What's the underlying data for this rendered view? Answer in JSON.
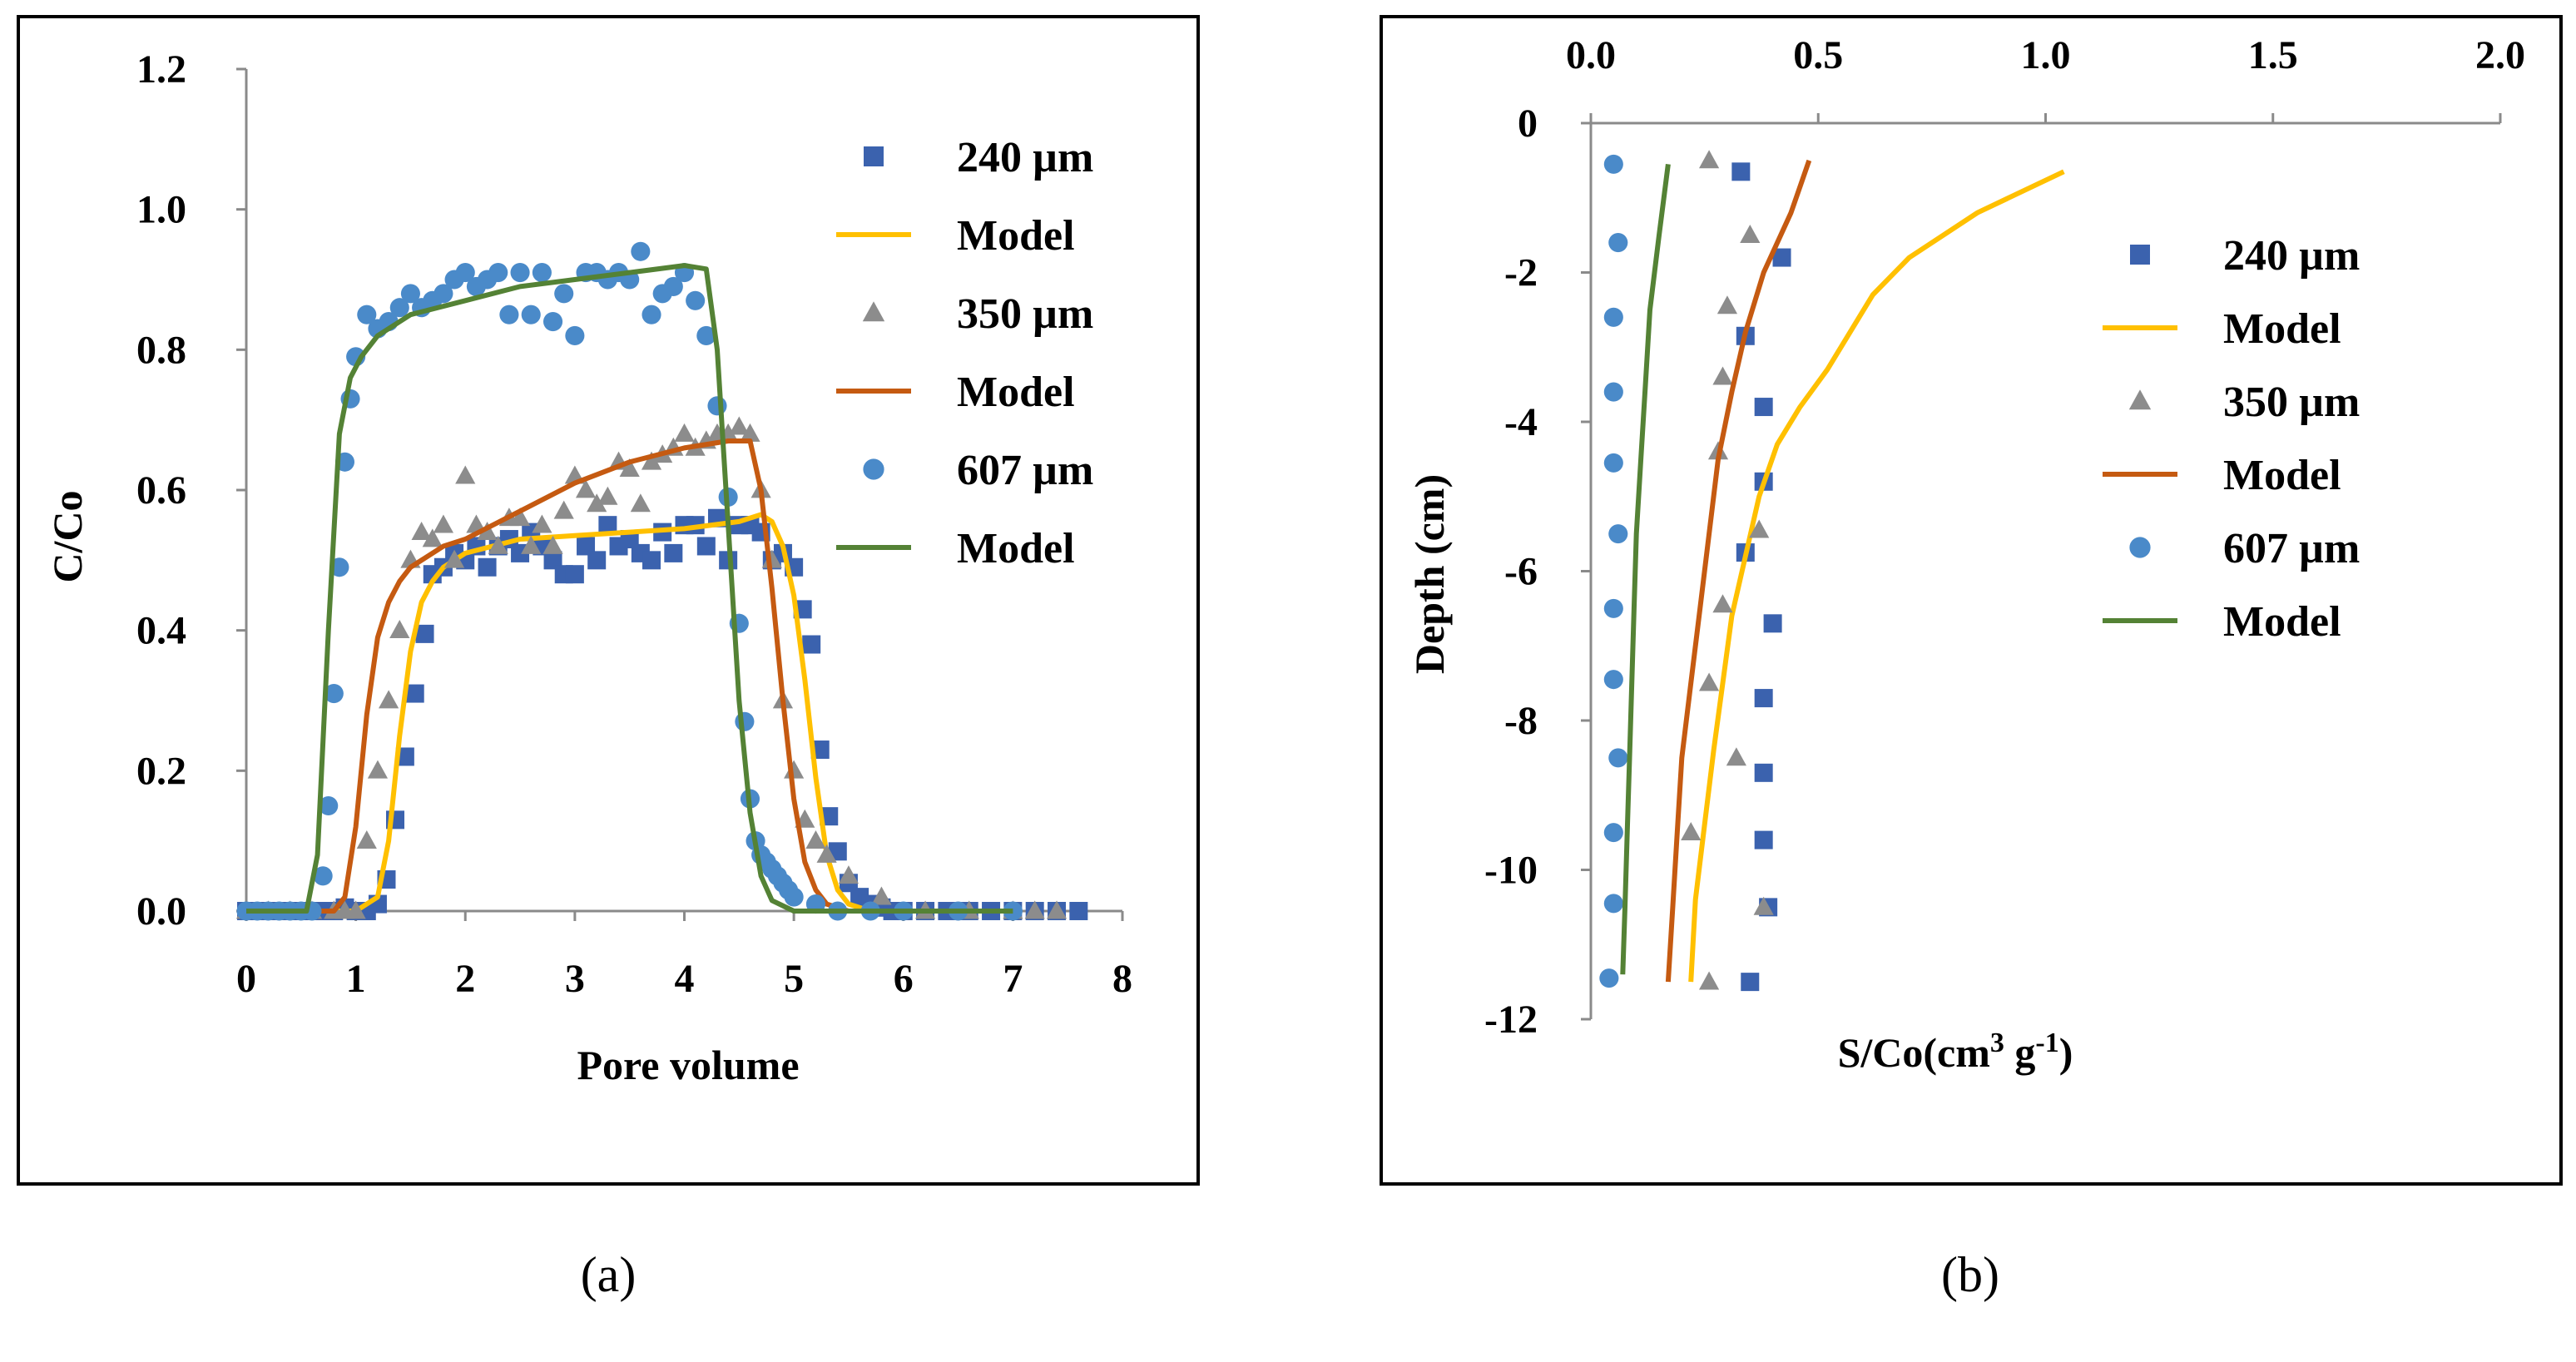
{
  "chart_data": [
    {
      "type": "scatter",
      "caption": "(a)",
      "xlabel": "Pore volume",
      "ylabel": "C/Co",
      "xlim": [
        0,
        8
      ],
      "ylim": [
        0,
        1.2
      ],
      "xticks": [
        "0",
        "1",
        "2",
        "3",
        "4",
        "5",
        "6",
        "7",
        "8"
      ],
      "yticks": [
        "0.0",
        "0.2",
        "0.4",
        "0.6",
        "0.8",
        "1.0",
        "1.2"
      ],
      "legend_position": "top-right",
      "series": [
        {
          "name": "240 µm",
          "kind": "scatter",
          "marker": "square",
          "color": "#3B62AE",
          "x": [
            0,
            0.1,
            0.2,
            0.3,
            0.4,
            0.5,
            0.6,
            0.7,
            0.8,
            0.9,
            1.0,
            1.1,
            1.2,
            1.28,
            1.36,
            1.45,
            1.54,
            1.63,
            1.7,
            1.8,
            1.9,
            2.0,
            2.1,
            2.2,
            2.3,
            2.4,
            2.5,
            2.6,
            2.7,
            2.8,
            2.9,
            3.0,
            3.1,
            3.2,
            3.3,
            3.4,
            3.5,
            3.6,
            3.7,
            3.8,
            3.9,
            4.0,
            4.1,
            4.2,
            4.3,
            4.4,
            4.5,
            4.6,
            4.7,
            4.8,
            4.9,
            5.0,
            5.08,
            5.16,
            5.24,
            5.32,
            5.4,
            5.5,
            5.6,
            5.7,
            5.8,
            5.9,
            6.0,
            6.2,
            6.4,
            6.6,
            6.8,
            7.0,
            7.2,
            7.4,
            7.6
          ],
          "y": [
            0,
            0,
            0,
            0,
            0,
            0,
            0,
            0,
            0,
            0.005,
            0,
            0,
            0.01,
            0.045,
            0.13,
            0.22,
            0.31,
            0.395,
            0.48,
            0.49,
            0.51,
            0.5,
            0.52,
            0.49,
            0.52,
            0.53,
            0.51,
            0.54,
            0.52,
            0.5,
            0.48,
            0.48,
            0.52,
            0.5,
            0.55,
            0.52,
            0.53,
            0.51,
            0.5,
            0.54,
            0.51,
            0.55,
            0.55,
            0.52,
            0.56,
            0.5,
            0.55,
            0.55,
            0.54,
            0.5,
            0.51,
            0.49,
            0.43,
            0.38,
            0.23,
            0.135,
            0.085,
            0.04,
            0.02,
            0.01,
            0.005,
            0,
            0,
            0,
            0,
            0,
            0,
            0,
            0,
            0,
            0
          ]
        },
        {
          "name": "Model",
          "kind": "line",
          "color": "#FFC000",
          "x": [
            0,
            1.0,
            1.2,
            1.3,
            1.4,
            1.5,
            1.6,
            1.7,
            1.8,
            2.0,
            2.5,
            3.0,
            3.5,
            4.0,
            4.5,
            4.7,
            4.8,
            4.9,
            5.0,
            5.1,
            5.2,
            5.3,
            5.4,
            5.5,
            5.7,
            6.0,
            7.0
          ],
          "y": [
            0,
            0,
            0.02,
            0.1,
            0.25,
            0.37,
            0.44,
            0.47,
            0.49,
            0.51,
            0.53,
            0.535,
            0.54,
            0.545,
            0.555,
            0.565,
            0.555,
            0.52,
            0.45,
            0.33,
            0.19,
            0.08,
            0.03,
            0.01,
            0,
            0,
            0
          ]
        },
        {
          "name": "350 µm",
          "kind": "scatter",
          "marker": "triangle",
          "color": "#8C8C8C",
          "x": [
            0,
            0.2,
            0.4,
            0.6,
            0.8,
            0.9,
            1.0,
            1.1,
            1.2,
            1.3,
            1.4,
            1.5,
            1.6,
            1.7,
            1.8,
            1.9,
            2.0,
            2.1,
            2.2,
            2.3,
            2.4,
            2.5,
            2.6,
            2.7,
            2.8,
            2.9,
            3.0,
            3.1,
            3.2,
            3.3,
            3.4,
            3.5,
            3.6,
            3.7,
            3.8,
            3.9,
            4.0,
            4.1,
            4.2,
            4.3,
            4.4,
            4.5,
            4.6,
            4.7,
            4.8,
            4.9,
            5.0,
            5.1,
            5.2,
            5.3,
            5.5,
            5.8,
            6.2,
            6.6,
            7.0,
            7.2,
            7.4
          ],
          "y": [
            0,
            0,
            0,
            0,
            0,
            0,
            0,
            0.1,
            0.2,
            0.3,
            0.4,
            0.5,
            0.54,
            0.53,
            0.55,
            0.5,
            0.62,
            0.55,
            0.54,
            0.52,
            0.56,
            0.56,
            0.52,
            0.55,
            0.52,
            0.57,
            0.62,
            0.6,
            0.58,
            0.59,
            0.64,
            0.63,
            0.58,
            0.64,
            0.65,
            0.66,
            0.68,
            0.66,
            0.67,
            0.68,
            0.68,
            0.69,
            0.68,
            0.6,
            0.5,
            0.3,
            0.2,
            0.13,
            0.1,
            0.08,
            0.05,
            0.02,
            0,
            0,
            0,
            0,
            0
          ]
        },
        {
          "name": "Model",
          "kind": "line",
          "color": "#C55A11",
          "x": [
            0,
            0.8,
            0.9,
            1.0,
            1.1,
            1.2,
            1.3,
            1.4,
            1.5,
            1.6,
            1.8,
            2.0,
            2.5,
            3.0,
            3.5,
            4.0,
            4.4,
            4.6,
            4.7,
            4.8,
            4.9,
            5.0,
            5.1,
            5.2,
            5.3,
            5.5,
            6.0,
            7.0
          ],
          "y": [
            0,
            0,
            0.02,
            0.12,
            0.28,
            0.39,
            0.44,
            0.47,
            0.49,
            0.5,
            0.52,
            0.53,
            0.57,
            0.61,
            0.64,
            0.66,
            0.67,
            0.67,
            0.6,
            0.46,
            0.3,
            0.16,
            0.07,
            0.03,
            0.01,
            0,
            0,
            0
          ]
        },
        {
          "name": "607 µm",
          "kind": "scatter",
          "marker": "circle",
          "color": "#4A8AC9",
          "x": [
            0,
            0.1,
            0.2,
            0.3,
            0.4,
            0.5,
            0.6,
            0.7,
            0.75,
            0.8,
            0.85,
            0.9,
            0.95,
            1.0,
            1.1,
            1.2,
            1.3,
            1.4,
            1.5,
            1.6,
            1.7,
            1.8,
            1.9,
            2.0,
            2.1,
            2.2,
            2.3,
            2.4,
            2.5,
            2.6,
            2.7,
            2.8,
            2.9,
            3.0,
            3.1,
            3.2,
            3.3,
            3.4,
            3.5,
            3.6,
            3.7,
            3.8,
            3.9,
            4.0,
            4.1,
            4.2,
            4.3,
            4.4,
            4.5,
            4.55,
            4.6,
            4.65,
            4.7,
            4.75,
            4.8,
            4.85,
            4.9,
            4.95,
            5.0,
            5.2,
            5.4,
            5.7,
            6.0,
            6.5,
            7.0
          ],
          "y": [
            0,
            0,
            0,
            0,
            0,
            0,
            0,
            0.05,
            0.15,
            0.31,
            0.49,
            0.64,
            0.73,
            0.79,
            0.85,
            0.83,
            0.84,
            0.86,
            0.88,
            0.86,
            0.87,
            0.88,
            0.9,
            0.91,
            0.89,
            0.9,
            0.91,
            0.85,
            0.91,
            0.85,
            0.91,
            0.84,
            0.88,
            0.82,
            0.91,
            0.91,
            0.9,
            0.91,
            0.9,
            0.94,
            0.85,
            0.88,
            0.89,
            0.91,
            0.87,
            0.82,
            0.72,
            0.59,
            0.41,
            0.27,
            0.16,
            0.1,
            0.08,
            0.07,
            0.06,
            0.05,
            0.04,
            0.03,
            0.02,
            0.01,
            0,
            0,
            0,
            0,
            0
          ]
        },
        {
          "name": "Model",
          "kind": "line",
          "color": "#548235",
          "x": [
            0,
            0.55,
            0.65,
            0.75,
            0.85,
            0.95,
            1.05,
            1.2,
            1.5,
            2.0,
            2.5,
            3.0,
            3.5,
            4.0,
            4.2,
            4.3,
            4.4,
            4.5,
            4.6,
            4.7,
            4.8,
            5.0,
            5.5,
            7.0
          ],
          "y": [
            0,
            0,
            0.08,
            0.4,
            0.68,
            0.76,
            0.79,
            0.82,
            0.85,
            0.87,
            0.89,
            0.9,
            0.91,
            0.92,
            0.915,
            0.8,
            0.55,
            0.3,
            0.14,
            0.05,
            0.015,
            0,
            0,
            0
          ]
        }
      ]
    },
    {
      "type": "scatter",
      "caption": "(b)",
      "xlabel": "S/Co(cm³ g⁻¹)",
      "xlabel_main": "S/Co(cm",
      "xlabel_sup1": "3",
      "xlabel_mid": " g",
      "xlabel_sup2": "-1",
      "xlabel_end": ")",
      "ylabel": "Depth (cm)",
      "xlim": [
        0,
        2.0
      ],
      "ylim": [
        -12,
        0
      ],
      "x_axis_position": "top",
      "xticks": [
        "0.0",
        "0.5",
        "1.0",
        "1.5",
        "2.0"
      ],
      "yticks": [
        "0",
        "-2",
        "-4",
        "-6",
        "-8",
        "-10",
        "-12"
      ],
      "legend_position": "right",
      "series": [
        {
          "name": "240 µm",
          "kind": "scatter",
          "marker": "square",
          "color": "#3B62AE",
          "x": [
            0.33,
            0.42,
            0.34,
            0.38,
            0.38,
            0.34,
            0.4,
            0.38,
            0.38,
            0.38,
            0.39,
            0.35
          ],
          "y": [
            -0.65,
            -1.8,
            -2.85,
            -3.8,
            -4.8,
            -5.75,
            -6.7,
            -7.7,
            -8.7,
            -9.6,
            -10.5,
            -11.5
          ]
        },
        {
          "name": "Model",
          "kind": "line",
          "color": "#FFC000",
          "x": [
            1.04,
            0.85,
            0.7,
            0.62,
            0.57,
            0.52,
            0.46,
            0.41,
            0.37,
            0.34,
            0.31,
            0.29,
            0.27,
            0.25,
            0.23,
            0.22
          ],
          "y": [
            -0.65,
            -1.2,
            -1.8,
            -2.3,
            -2.8,
            -3.3,
            -3.8,
            -4.3,
            -5.0,
            -5.8,
            -6.6,
            -7.5,
            -8.4,
            -9.4,
            -10.4,
            -11.5
          ]
        },
        {
          "name": "350 µm",
          "kind": "scatter",
          "marker": "triangle",
          "color": "#8C8C8C",
          "x": [
            0.26,
            0.35,
            0.3,
            0.29,
            0.28,
            0.37,
            0.29,
            0.26,
            0.32,
            0.22,
            0.38,
            0.26
          ],
          "y": [
            -0.5,
            -1.5,
            -2.45,
            -3.4,
            -4.4,
            -5.45,
            -6.45,
            -7.5,
            -8.5,
            -9.5,
            -10.5,
            -11.5
          ]
        },
        {
          "name": "Model",
          "kind": "line",
          "color": "#C55A11",
          "x": [
            0.48,
            0.44,
            0.38,
            0.34,
            0.31,
            0.28,
            0.26,
            0.24,
            0.22,
            0.2,
            0.19,
            0.18,
            0.17
          ],
          "y": [
            -0.5,
            -1.2,
            -2.0,
            -2.8,
            -3.6,
            -4.5,
            -5.5,
            -6.5,
            -7.5,
            -8.5,
            -9.5,
            -10.5,
            -11.5
          ]
        },
        {
          "name": "607 µm",
          "kind": "scatter",
          "marker": "circle",
          "color": "#4A8AC9",
          "x": [
            0.05,
            0.06,
            0.05,
            0.05,
            0.05,
            0.06,
            0.05,
            0.05,
            0.06,
            0.05,
            0.05,
            0.04
          ],
          "y": [
            -0.55,
            -1.6,
            -2.6,
            -3.6,
            -4.55,
            -5.5,
            -6.5,
            -7.45,
            -8.5,
            -9.5,
            -10.45,
            -11.45
          ]
        },
        {
          "name": "Model",
          "kind": "line",
          "color": "#548235",
          "x": [
            0.17,
            0.15,
            0.13,
            0.12,
            0.11,
            0.1,
            0.095,
            0.09,
            0.085,
            0.08,
            0.075,
            0.07
          ],
          "y": [
            -0.55,
            -1.5,
            -2.5,
            -3.5,
            -4.5,
            -5.5,
            -6.5,
            -7.5,
            -8.5,
            -9.5,
            -10.5,
            -11.4
          ]
        }
      ]
    }
  ]
}
